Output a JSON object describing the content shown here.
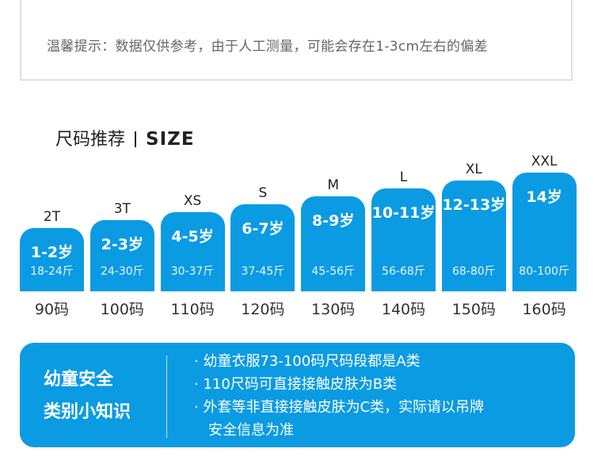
{
  "notice": {
    "text": "温馨提示：数据仅供参考，由于人工测量，可能会存在1-3cm左右的偏差"
  },
  "heading": {
    "cn": "尺码推荐",
    "en": "SIZE"
  },
  "chart_data": {
    "type": "bar",
    "categories": [
      "2T",
      "3T",
      "XS",
      "S",
      "M",
      "L",
      "XL",
      "XXL"
    ],
    "ages": [
      "1-2岁",
      "2-3岁",
      "4-5岁",
      "6-7岁",
      "8-9岁",
      "10-11岁",
      "12-13岁",
      "14岁"
    ],
    "weights": [
      "18-24斤",
      "24-30斤",
      "30-37斤",
      "37-45斤",
      "45-56斤",
      "56-68斤",
      "68-80斤",
      "80-100斤"
    ],
    "codes": [
      "90码",
      "100码",
      "110码",
      "120码",
      "130码",
      "140码",
      "150码",
      "160码"
    ],
    "values": [
      90,
      100,
      110,
      120,
      130,
      140,
      150,
      160
    ],
    "bar_color": "#0b9be3"
  },
  "panel": {
    "title_lines": [
      "幼童安全",
      "类别小知识"
    ],
    "items": [
      "· 幼童衣服73-100码尺码段都是A类",
      "· 110尺码可直接接触皮肤为B类",
      "· 外套等非直接接触皮肤为C类，实际请以吊牌",
      "　安全信息为准"
    ]
  }
}
